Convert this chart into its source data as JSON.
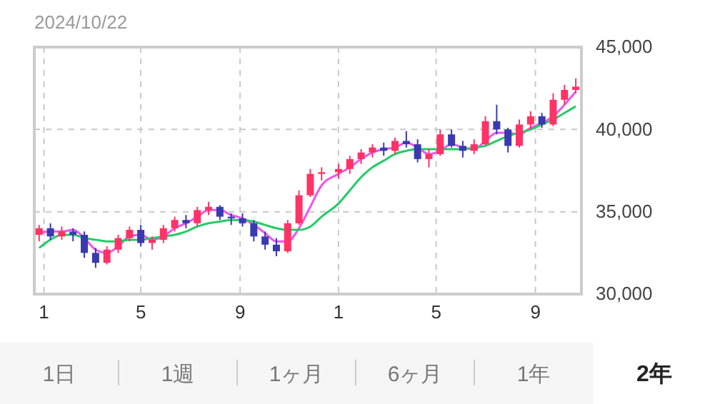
{
  "chart_data": {
    "type": "candlestick",
    "title": "2024/10/22",
    "annotations": [
      "1日",
      "1週",
      "1ヶ月",
      "6ヶ月",
      "1年",
      "2年"
    ],
    "x": [
      "2022-12-26",
      "2023-01-09",
      "2023-01-23",
      "2023-02-06",
      "2023-02-20",
      "2023-03-06",
      "2023-03-20",
      "2023-04-03",
      "2023-04-17",
      "2023-05-01",
      "2023-05-15",
      "2023-05-29",
      "2023-06-12",
      "2023-06-26",
      "2023-07-10",
      "2023-07-24",
      "2023-08-07",
      "2023-08-21",
      "2023-09-04",
      "2023-09-18",
      "2023-10-02",
      "2023-10-16",
      "2023-10-30",
      "2023-11-13",
      "2023-11-27",
      "2023-12-11",
      "2024-01-01",
      "2024-01-15",
      "2024-01-29",
      "2024-02-12",
      "2024-02-26",
      "2024-03-11",
      "2024-03-25",
      "2024-04-08",
      "2024-04-22",
      "2024-05-06",
      "2024-05-20",
      "2024-06-03",
      "2024-06-17",
      "2024-07-01",
      "2024-07-15",
      "2024-07-29",
      "2024-08-12",
      "2024-08-26",
      "2024-09-09",
      "2024-09-23",
      "2024-10-07",
      "2024-10-21"
    ],
    "series": [
      {
        "type": "candlestick",
        "ohlc": [
          [
            33600,
            34200,
            33200,
            34000
          ],
          [
            34000,
            34300,
            33300,
            33500
          ],
          [
            33500,
            34100,
            33300,
            33800
          ],
          [
            33800,
            34000,
            33200,
            33600
          ],
          [
            33600,
            33800,
            32200,
            32500
          ],
          [
            32500,
            32800,
            31600,
            31900
          ],
          [
            31900,
            32900,
            31800,
            32700
          ],
          [
            32700,
            33600,
            32500,
            33400
          ],
          [
            33400,
            34100,
            33200,
            33900
          ],
          [
            33900,
            34200,
            32900,
            33100
          ],
          [
            33100,
            33500,
            32700,
            33300
          ],
          [
            33300,
            34200,
            33100,
            34000
          ],
          [
            34000,
            34700,
            33800,
            34500
          ],
          [
            34500,
            34800,
            34000,
            34300
          ],
          [
            34300,
            35300,
            34100,
            35100
          ],
          [
            35100,
            35600,
            34800,
            35300
          ],
          [
            35300,
            35400,
            34500,
            34700
          ],
          [
            34700,
            34900,
            34200,
            34600
          ],
          [
            34600,
            34900,
            34100,
            34300
          ],
          [
            34300,
            34500,
            33200,
            33500
          ],
          [
            33500,
            33800,
            32700,
            33000
          ],
          [
            33000,
            33400,
            32300,
            32600
          ],
          [
            32600,
            34500,
            32500,
            34300
          ],
          [
            34300,
            36300,
            34200,
            36000
          ],
          [
            36000,
            37600,
            35900,
            37300
          ],
          [
            37300,
            37700,
            36900,
            37400
          ],
          [
            37400,
            37900,
            37000,
            37600
          ],
          [
            37600,
            38400,
            37300,
            38200
          ],
          [
            38200,
            38800,
            37900,
            38600
          ],
          [
            38600,
            39100,
            38300,
            38900
          ],
          [
            38900,
            39200,
            38400,
            38700
          ],
          [
            38700,
            39500,
            38500,
            39300
          ],
          [
            39300,
            39900,
            38900,
            39100
          ],
          [
            39100,
            39400,
            38000,
            38200
          ],
          [
            38200,
            38800,
            37700,
            38500
          ],
          [
            38500,
            40000,
            38400,
            39700
          ],
          [
            39700,
            40000,
            38900,
            39000
          ],
          [
            39000,
            39300,
            38300,
            38700
          ],
          [
            38700,
            39400,
            38500,
            39100
          ],
          [
            39100,
            40800,
            39000,
            40500
          ],
          [
            40500,
            41500,
            39700,
            40000
          ],
          [
            40000,
            40100,
            38600,
            39000
          ],
          [
            39000,
            40600,
            38900,
            40300
          ],
          [
            40300,
            41100,
            40000,
            40800
          ],
          [
            40800,
            41000,
            40100,
            40300
          ],
          [
            40300,
            42200,
            40200,
            41800
          ],
          [
            41800,
            42700,
            41500,
            42400
          ],
          [
            42400,
            43100,
            42200,
            42600
          ]
        ],
        "colors": [
          "#ff3366",
          "#3a3ab0",
          "#ff3366",
          "#3a3ab0",
          "#3a3ab0",
          "#3a3ab0",
          "#ff3366",
          "#ff3366",
          "#ff3366",
          "#3a3ab0",
          "#ff3366",
          "#ff3366",
          "#ff3366",
          "#3a3ab0",
          "#ff3366",
          "#ff3366",
          "#3a3ab0",
          "#3a3ab0",
          "#3a3ab0",
          "#3a3ab0",
          "#3a3ab0",
          "#3a3ab0",
          "#ff3366",
          "#ff3366",
          "#ff3366",
          "#ff3366",
          "#ff3366",
          "#ff3366",
          "#ff3366",
          "#ff3366",
          "#3a3ab0",
          "#ff3366",
          "#3a3ab0",
          "#3a3ab0",
          "#ff3366",
          "#ff3366",
          "#3a3ab0",
          "#3a3ab0",
          "#ff3366",
          "#ff3366",
          "#3a3ab0",
          "#3a3ab0",
          "#ff3366",
          "#ff3366",
          "#3a3ab0",
          "#ff3366",
          "#ff3366",
          "#ff3366"
        ]
      },
      {
        "type": "line",
        "color": "#ee55ee",
        "values": [
          33700,
          33800,
          33800,
          33900,
          33400,
          32700,
          32500,
          32900,
          33500,
          33600,
          33300,
          33500,
          34000,
          34300,
          34700,
          35100,
          35100,
          34800,
          34600,
          34200,
          33700,
          33200,
          33200,
          34000,
          35300,
          36600,
          37300,
          37700,
          38200,
          38600,
          38800,
          38900,
          39200,
          38900,
          38500,
          38700,
          39100,
          38900,
          38800,
          39300,
          39800,
          39800,
          39700,
          40100,
          40400,
          40800,
          41500,
          42300
        ]
      },
      {
        "type": "line",
        "color": "#22cc66",
        "values": [
          32800,
          33300,
          33600,
          33600,
          33400,
          33300,
          33200,
          33200,
          33300,
          33300,
          33400,
          33500,
          33600,
          33800,
          34100,
          34300,
          34400,
          34500,
          34500,
          34400,
          34200,
          34000,
          33900,
          33900,
          34100,
          34700,
          35500,
          36300,
          37100,
          37700,
          38100,
          38500,
          38700,
          38800,
          38800,
          38800,
          38800,
          38800,
          38900,
          39000,
          39300,
          39600,
          39800,
          40000,
          40300,
          40600,
          41000,
          41400
        ]
      }
    ],
    "xlim": [
      "2022-12-20",
      "2024-10-28"
    ],
    "xticks": [
      {
        "value": "2023-01-01",
        "label": "1"
      },
      {
        "value": "2023-05-01",
        "label": "5"
      },
      {
        "value": "2023-09-01",
        "label": "9"
      },
      {
        "value": "2024-01-01",
        "label": "1"
      },
      {
        "value": "2024-05-01",
        "label": "5"
      },
      {
        "value": "2024-09-01",
        "label": "9"
      }
    ],
    "ylim": [
      30000,
      45000
    ],
    "yticks": [
      {
        "value": 30000,
        "label": "30,000"
      },
      {
        "value": 35000,
        "label": "35,000"
      },
      {
        "value": 40000,
        "label": "40,000"
      },
      {
        "value": 45000,
        "label": "45,000"
      }
    ],
    "grid": true
  }
}
